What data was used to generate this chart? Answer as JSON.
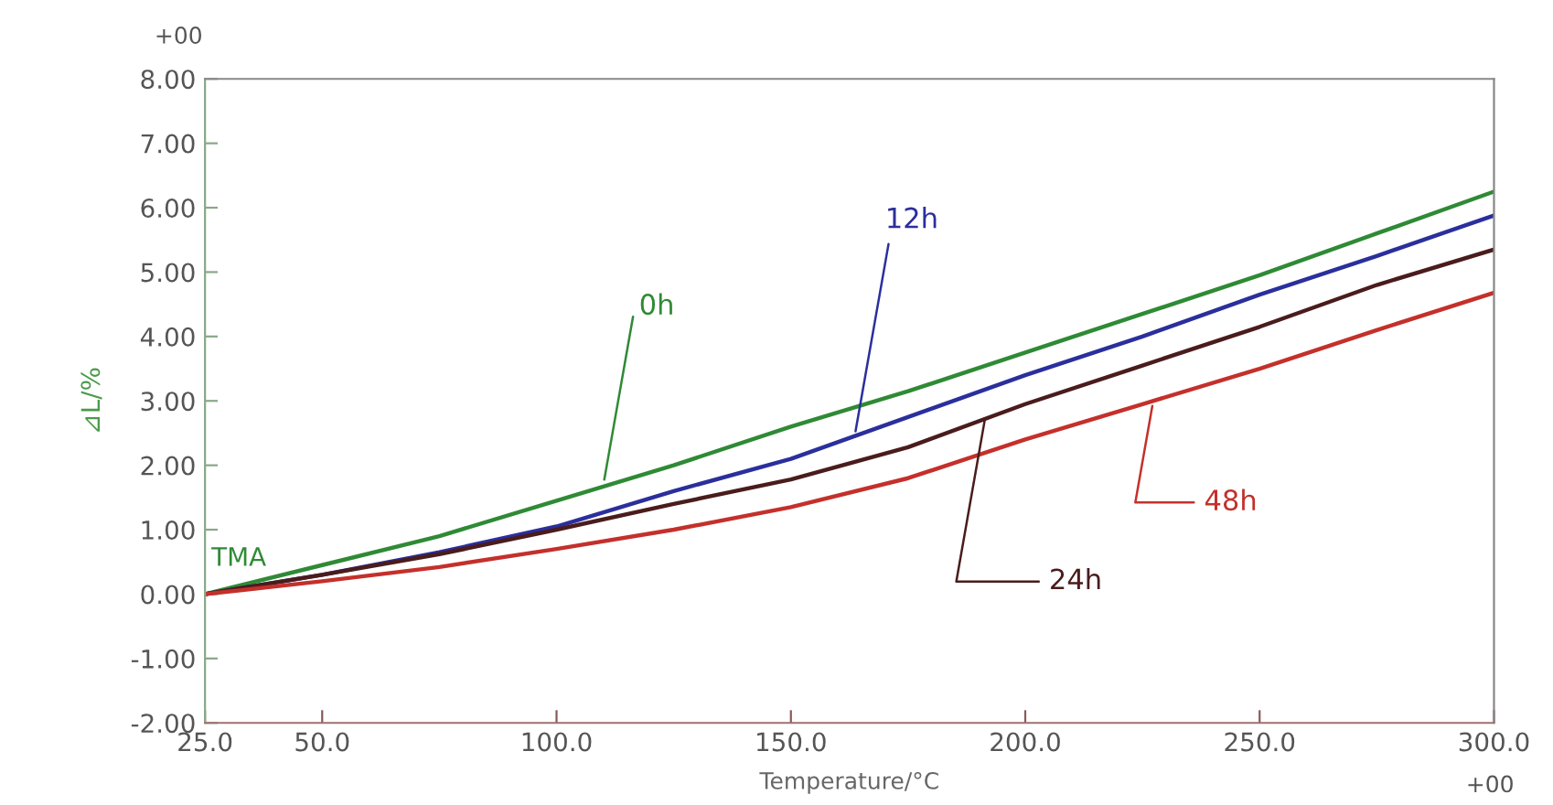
{
  "chart_data": {
    "type": "line",
    "xlabel": "Temperature/°C",
    "ylabel": "⊿L/%",
    "x": [
      25,
      50,
      75,
      100,
      125,
      150,
      175,
      200,
      225,
      250,
      275,
      300
    ],
    "series": [
      {
        "color": "#2f8a35",
        "values": [
          0,
          0.45,
          0.9,
          1.45,
          2.0,
          2.6,
          3.15,
          3.75,
          4.35,
          4.95,
          5.6,
          6.25
        ]
      },
      {
        "color": "#2b2f9c",
        "values": [
          0,
          0.3,
          0.65,
          1.05,
          1.6,
          2.1,
          2.75,
          3.4,
          4.0,
          4.65,
          5.25,
          5.88
        ]
      },
      {
        "color": "#4a1c1c",
        "values": [
          0,
          0.3,
          0.62,
          1.0,
          1.4,
          1.78,
          2.28,
          2.95,
          3.55,
          4.15,
          4.8,
          5.35
        ]
      },
      {
        "color": "#c4302b",
        "values": [
          0,
          0.2,
          0.42,
          0.7,
          1.0,
          1.35,
          1.8,
          2.4,
          2.95,
          3.5,
          4.1,
          4.68
        ]
      }
    ],
    "annotations": [
      {
        "text": "0h",
        "x": 110,
        "y": 1.7
      },
      {
        "text": "12h",
        "x": 163.6,
        "y": 2.45
      },
      {
        "text": "24h",
        "x": 191.5,
        "y": 2.76
      },
      {
        "text": "48h",
        "x": 227.3,
        "y": 3.0
      },
      "TMA",
      "+00",
      "+00"
    ],
    "xlim": [
      25,
      300
    ],
    "ylim": [
      -2,
      8
    ],
    "xticks": [
      {
        "value": 25,
        "label": "25.0"
      },
      {
        "value": 50,
        "label": "50.0"
      },
      {
        "value": 100,
        "label": "100.0"
      },
      {
        "value": 150,
        "label": "150.0"
      },
      {
        "value": 200,
        "label": "200.0"
      },
      {
        "value": 250,
        "label": "250.0"
      },
      {
        "value": 300,
        "label": "300.0"
      }
    ],
    "yticks": [
      {
        "value": -2,
        "label": "-2.00"
      },
      {
        "value": -1,
        "label": "-1.00"
      },
      {
        "value": 0,
        "label": "0.00"
      },
      {
        "value": 1,
        "label": "1.00"
      },
      {
        "value": 2,
        "label": "2.00"
      },
      {
        "value": 3,
        "label": "3.00"
      },
      {
        "value": 4,
        "label": "4.00"
      },
      {
        "value": 5,
        "label": "5.00"
      },
      {
        "value": 6,
        "label": "6.00"
      },
      {
        "value": 7,
        "label": "7.00"
      },
      {
        "value": 8,
        "label": "8.00"
      }
    ],
    "grid": false,
    "legend": false,
    "marker": "none",
    "line_style": "solid"
  }
}
